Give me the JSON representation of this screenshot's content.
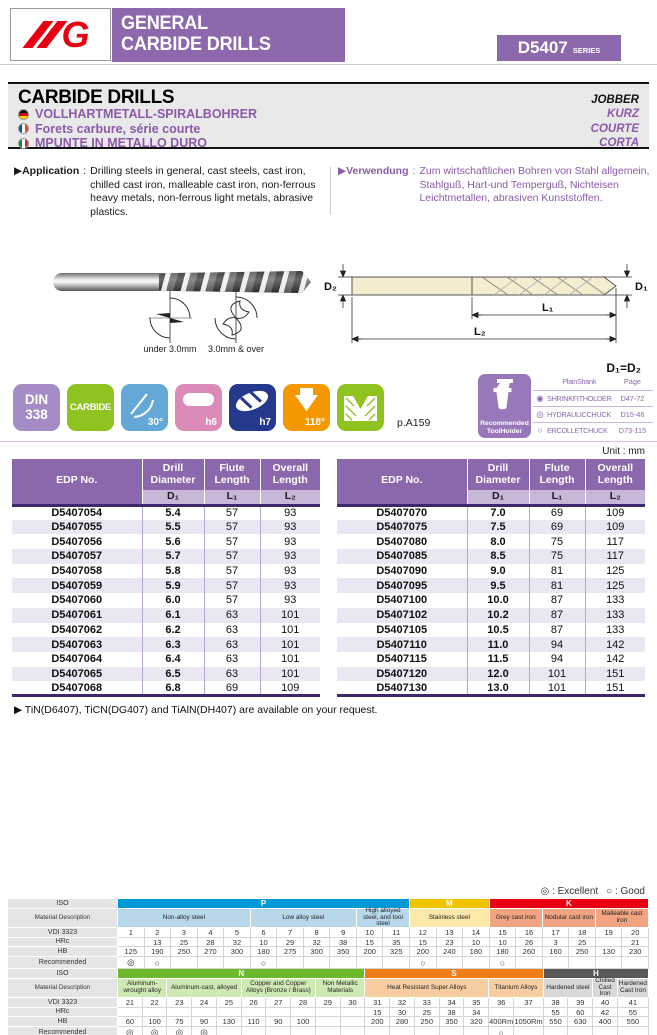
{
  "colors": {
    "accent_purple": "#8d68ac",
    "brand_red": "#e60012",
    "header_table": "#8b68ab",
    "subheader_table": "#c9b7da"
  },
  "header": {
    "logo_g": "G",
    "title_line1": "GENERAL",
    "title_line2": "CARBIDE DRILLS",
    "series": "D5407",
    "series_suffix": "SERIES"
  },
  "title_block": {
    "title": "CARBIDE DRILLS",
    "subtitle_right": "JOBBER",
    "translations": [
      {
        "flag": "de-flag",
        "text": "VOLLHARTMETALL-SPIRALBOHRER",
        "right": "KURZ"
      },
      {
        "flag": "fr-flag",
        "text": "Forets carbure, série courte",
        "right": "COURTE"
      },
      {
        "flag": "it-flag",
        "text": "MPUNTE IN METALLO DURO",
        "right": "CORTA"
      }
    ]
  },
  "application": {
    "label": "▶Application",
    "colon": ":",
    "text": "Drilling steels in general, cast steels, cast iron, chilled cast iron, malleable cast iron, non-ferrous heavy metals, non-ferrous light metals, abrasive plastics."
  },
  "verwendung": {
    "label": "▶Verwendung",
    "colon": ":",
    "text": "Zum wirtschaftlichen Bohren von Stahl allgemein, Stahlguß, Hart-und Temperguß, Nichteisen Leichtmetallen, abrasiven Kunststoffen."
  },
  "diagram": {
    "caption_small": "under 3.0mm",
    "caption_large": "3.0mm & over",
    "d1": "D₁",
    "d2": "D₂",
    "l1": "L₁",
    "l2": "L₂",
    "note": "D₁=D₂"
  },
  "badges": {
    "items": [
      {
        "line1": "DIN",
        "line2": "338",
        "color": "#a68cc6"
      },
      {
        "word": "CARBIDE",
        "color": "#8fc31f"
      },
      {
        "corner": "30°",
        "color": "#64a8d8",
        "icon": "point-angle-icon"
      },
      {
        "corner": "h6",
        "color": "#dc8ab8",
        "icon": "shank-tolerance-icon"
      },
      {
        "corner": "h7",
        "color": "#24388c",
        "icon": "flute-tolerance-icon"
      },
      {
        "corner": "118°",
        "color": "#f39800",
        "icon": "tip-angle-icon"
      },
      {
        "corner": "",
        "color": "#8fc31f",
        "icon": "countersink-icon"
      }
    ],
    "page_ref": "p.A159"
  },
  "toolholder": {
    "label_line1": "Recommended",
    "label_line2": "ToolHolder",
    "col1": "PlainShank",
    "col2": "Page",
    "rows": [
      {
        "symbol": "◉",
        "name": "SHRINKFITHOLDER",
        "page": "D47-72"
      },
      {
        "symbol": "◎",
        "name": "HYDRAULICCHUCK",
        "page": "D15-46"
      },
      {
        "symbol": "○",
        "name": "ERCOLLETCHUCK",
        "page": "D73-115"
      }
    ]
  },
  "unit_note": "Unit : mm",
  "spec_table": {
    "col_edp": "EDP No.",
    "col_d1": "Drill",
    "col_d2": "Diameter",
    "col_f1": "Flute",
    "col_f2": "Length",
    "col_o1": "Overall",
    "col_o2": "Length",
    "sub_d": "D₁",
    "sub_f": "L₁",
    "sub_o": "L₂",
    "left_rows": [
      {
        "edp": "D5407054",
        "d": "5.4",
        "f": "57",
        "o": "93"
      },
      {
        "edp": "D5407055",
        "d": "5.5",
        "f": "57",
        "o": "93"
      },
      {
        "edp": "D5407056",
        "d": "5.6",
        "f": "57",
        "o": "93"
      },
      {
        "edp": "D5407057",
        "d": "5.7",
        "f": "57",
        "o": "93"
      },
      {
        "edp": "D5407058",
        "d": "5.8",
        "f": "57",
        "o": "93"
      },
      {
        "edp": "D5407059",
        "d": "5.9",
        "f": "57",
        "o": "93"
      },
      {
        "edp": "D5407060",
        "d": "6.0",
        "f": "57",
        "o": "93"
      },
      {
        "edp": "D5407061",
        "d": "6.1",
        "f": "63",
        "o": "101"
      },
      {
        "edp": "D5407062",
        "d": "6.2",
        "f": "63",
        "o": "101"
      },
      {
        "edp": "D5407063",
        "d": "6.3",
        "f": "63",
        "o": "101"
      },
      {
        "edp": "D5407064",
        "d": "6.4",
        "f": "63",
        "o": "101"
      },
      {
        "edp": "D5407065",
        "d": "6.5",
        "f": "63",
        "o": "101"
      },
      {
        "edp": "D5407068",
        "d": "6.8",
        "f": "69",
        "o": "109"
      }
    ],
    "right_rows": [
      {
        "edp": "D5407070",
        "d": "7.0",
        "f": "69",
        "o": "109"
      },
      {
        "edp": "D5407075",
        "d": "7.5",
        "f": "69",
        "o": "109"
      },
      {
        "edp": "D5407080",
        "d": "8.0",
        "f": "75",
        "o": "117"
      },
      {
        "edp": "D5407085",
        "d": "8.5",
        "f": "75",
        "o": "117"
      },
      {
        "edp": "D5407090",
        "d": "9.0",
        "f": "81",
        "o": "125"
      },
      {
        "edp": "D5407095",
        "d": "9.5",
        "f": "81",
        "o": "125"
      },
      {
        "edp": "D5407100",
        "d": "10.0",
        "f": "87",
        "o": "133"
      },
      {
        "edp": "D5407102",
        "d": "10.2",
        "f": "87",
        "o": "133"
      },
      {
        "edp": "D5407105",
        "d": "10.5",
        "f": "87",
        "o": "133"
      },
      {
        "edp": "D5407110",
        "d": "11.0",
        "f": "94",
        "o": "142"
      },
      {
        "edp": "D5407115",
        "d": "11.5",
        "f": "94",
        "o": "142"
      },
      {
        "edp": "D5407120",
        "d": "12.0",
        "f": "101",
        "o": "151"
      },
      {
        "edp": "D5407130",
        "d": "13.0",
        "f": "101",
        "o": "151"
      }
    ]
  },
  "note": "▶ TiN(D6407), TiCN(DG407) and TiAlN(DH407) are available on your request.",
  "legend": {
    "excellent": "◎ : Excellent",
    "good": "○ : Good"
  },
  "material_charts": {
    "row_labels": {
      "iso": "ISO",
      "material": "Material Description",
      "vdi": "VDI 3323",
      "hrc": "HRc",
      "hb": "HB",
      "recommended": "Recommended"
    },
    "charts": [
      {
        "groups": [
          {
            "code": "P",
            "span": 11,
            "header": "#0099d8",
            "cell": "#b7d7eb"
          },
          {
            "code": "M",
            "span": 3,
            "header": "#f0c400",
            "cell": "#fce9a9"
          },
          {
            "code": "K",
            "span": 6,
            "header": "#e60012",
            "cell": "#f2a482"
          }
        ],
        "materials": [
          {
            "text": "Non-alloy steel",
            "span": 5,
            "g": 0
          },
          {
            "text": "Low alloy steel",
            "span": 4,
            "g": 0
          },
          {
            "text": "High alloyed steel, and tool steel",
            "span": 2,
            "g": 0
          },
          {
            "text": "Stainless steel",
            "span": 3,
            "g": 1
          },
          {
            "text": "Grey cast iron",
            "span": 2,
            "g": 2
          },
          {
            "text": "Nodular cast iron",
            "span": 2,
            "g": 2
          },
          {
            "text": "Malleable cast iron",
            "span": 2,
            "g": 2
          }
        ],
        "vdi": [
          "1",
          "2",
          "3",
          "4",
          "5",
          "6",
          "7",
          "8",
          "9",
          "10",
          "11",
          "12",
          "13",
          "14",
          "15",
          "16",
          "17",
          "18",
          "19",
          "20"
        ],
        "hrc": [
          "",
          "13",
          "25",
          "28",
          "32",
          "10",
          "29",
          "32",
          "38",
          "15",
          "35",
          "15",
          "23",
          "10",
          "10",
          "26",
          "3",
          "25",
          "",
          "21"
        ],
        "hb": [
          "125",
          "190",
          "250",
          "270",
          "300",
          "180",
          "275",
          "300",
          "350",
          "200",
          "325",
          "200",
          "240",
          "180",
          "180",
          "260",
          "160",
          "250",
          "130",
          "230"
        ],
        "rec": [
          "◎",
          "○",
          "",
          "",
          "",
          "○",
          "",
          "",
          "",
          "",
          "",
          "○",
          "",
          "",
          "○",
          "",
          "",
          "",
          "",
          ""
        ]
      },
      {
        "groups": [
          {
            "code": "N",
            "span": 10,
            "header": "#6eb92b",
            "cell": "#cfe9b4"
          },
          {
            "code": "S",
            "span": 7,
            "header": "#f07d18",
            "cell": "#f9cda2"
          },
          {
            "code": "H",
            "span": 4,
            "header": "#595757",
            "cell": "#d8d8d8"
          }
        ],
        "materials": [
          {
            "text": "Aluminum-wrought alloy",
            "span": 2,
            "g": 0
          },
          {
            "text": "Aluminum-cast, alloyed",
            "span": 3,
            "g": 0
          },
          {
            "text": "Copper and Copper Alloys (Bronze / Brass)",
            "span": 3,
            "g": 0
          },
          {
            "text": "Non Metallic Materials",
            "span": 2,
            "g": 0
          },
          {
            "text": "Heat Resistant Super Alloys",
            "span": 5,
            "g": 1
          },
          {
            "text": "Titanium Alloys",
            "span": 2,
            "g": 1
          },
          {
            "text": "Hardened steel",
            "span": 2,
            "g": 2
          },
          {
            "text": "Chilled Cast Iron",
            "span": 1,
            "g": 2
          },
          {
            "text": "Hardened Cast Iron",
            "span": 1,
            "g": 2
          }
        ],
        "vdi": [
          "21",
          "22",
          "23",
          "24",
          "25",
          "26",
          "27",
          "28",
          "29",
          "30",
          "31",
          "32",
          "33",
          "34",
          "35",
          "36",
          "37",
          "38",
          "39",
          "40",
          "41"
        ],
        "hrc": [
          "",
          "",
          "",
          "",
          "",
          "",
          "",
          "",
          "",
          "",
          "15",
          "30",
          "25",
          "38",
          "34",
          "",
          "",
          "55",
          "60",
          "42",
          "55"
        ],
        "hb": [
          "60",
          "100",
          "75",
          "90",
          "130",
          "110",
          "90",
          "100",
          "",
          "",
          "200",
          "280",
          "250",
          "350",
          "320",
          "400Rm",
          "1050Rm",
          "550",
          "630",
          "400",
          "550"
        ],
        "rec": [
          "◎",
          "◎",
          "◎",
          "◎",
          "",
          "",
          "",
          "",
          "",
          "",
          "",
          "",
          "",
          "",
          "",
          "○",
          "",
          "",
          "",
          "",
          ""
        ]
      }
    ]
  }
}
